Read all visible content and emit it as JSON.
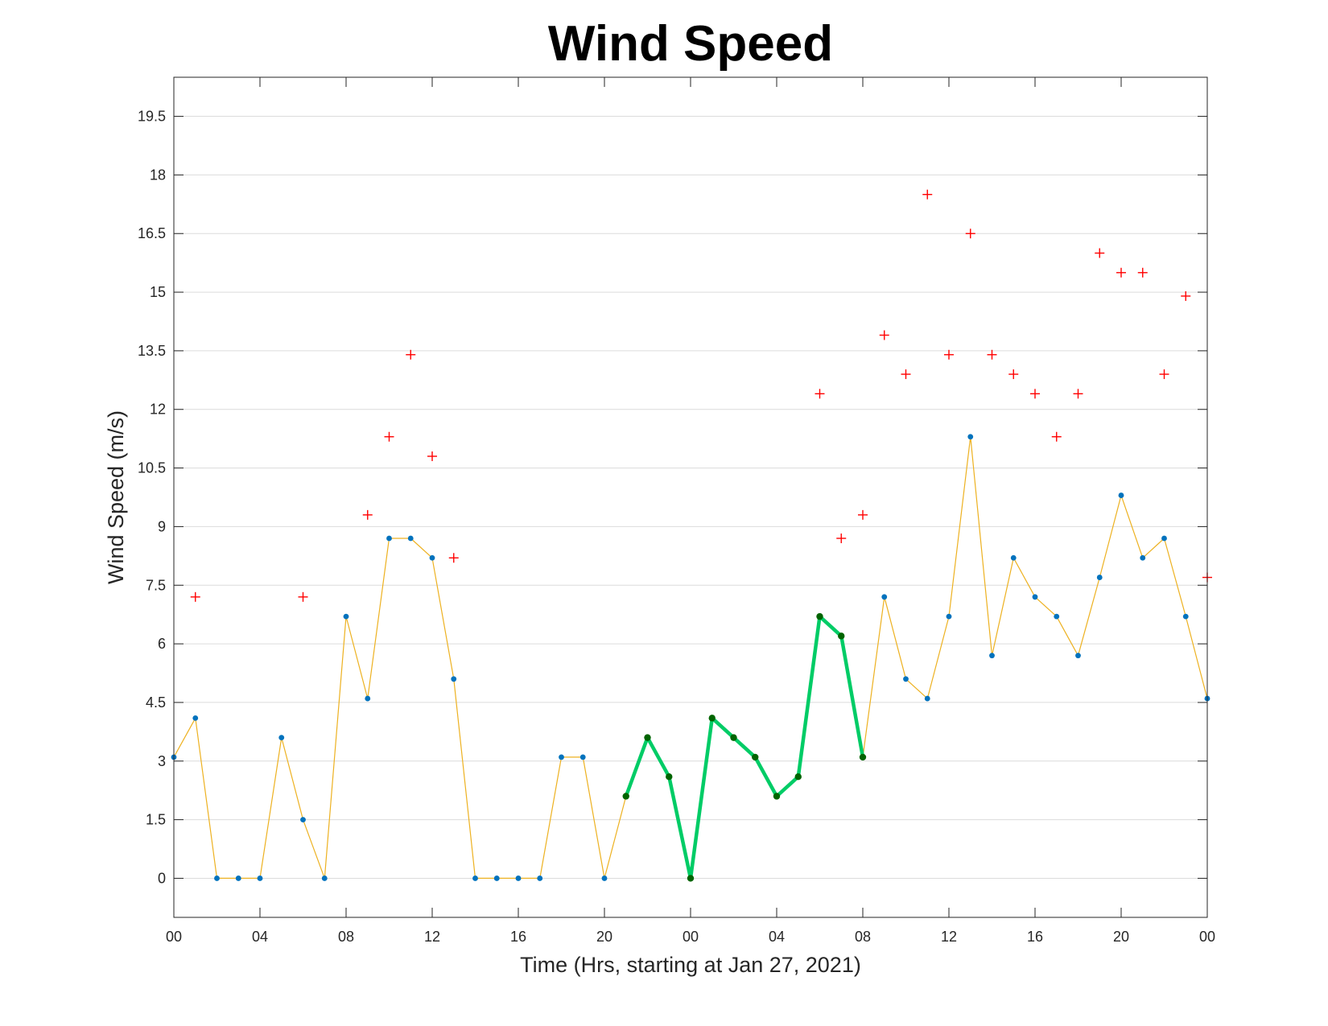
{
  "chart_data": {
    "type": "line",
    "title": "Wind Speed",
    "xlabel": "Time (Hrs, starting at Jan 27, 2021)",
    "ylabel": "Wind Speed (m/s)",
    "xlim": [
      0,
      48
    ],
    "ylim": [
      -1,
      20.5
    ],
    "x_ticks": [
      0,
      4,
      8,
      12,
      16,
      20,
      24,
      28,
      32,
      36,
      40,
      44,
      48
    ],
    "x_tick_labels": [
      "00",
      "04",
      "08",
      "12",
      "16",
      "20",
      "00",
      "04",
      "08",
      "12",
      "16",
      "20",
      "00"
    ],
    "y_ticks": [
      0,
      1.5,
      3,
      4.5,
      6,
      7.5,
      9,
      10.5,
      12,
      13.5,
      15,
      16.5,
      18,
      19.5
    ],
    "y_tick_labels": [
      "0",
      "1.5",
      "3",
      "4.5",
      "6",
      "7.5",
      "9",
      "10.5",
      "12",
      "13.5",
      "15",
      "16.5",
      "18",
      "19.5"
    ],
    "grid": "horizontal",
    "series": [
      {
        "style": "thin-line-markers",
        "color": "#EDB120",
        "marker_color": "#0072BD",
        "x": [
          0,
          1,
          2,
          3,
          4,
          5,
          6,
          7,
          8,
          9,
          10,
          11,
          12,
          13,
          14,
          15,
          16,
          17,
          18,
          19,
          20,
          21,
          22,
          23,
          24,
          25,
          26,
          27,
          28,
          29,
          30,
          31,
          32,
          33,
          34,
          35,
          36,
          37,
          38,
          39,
          40,
          41,
          42,
          43,
          44,
          45,
          46,
          47,
          48
        ],
        "y": [
          3.1,
          4.1,
          0,
          0,
          0,
          3.6,
          1.5,
          0,
          6.7,
          4.6,
          8.7,
          8.7,
          8.2,
          5.1,
          0,
          0,
          0,
          0,
          3.1,
          3.1,
          0,
          2.1,
          3.6,
          2.6,
          0,
          4.1,
          3.6,
          3.1,
          2.1,
          2.6,
          6.7,
          6.2,
          3.1,
          7.2,
          5.1,
          4.6,
          6.7,
          11.3,
          5.7,
          8.2,
          7.2,
          6.7,
          5.7,
          7.7,
          9.8,
          8.2,
          8.7,
          6.7,
          4.6
        ]
      },
      {
        "style": "thick-line-markers",
        "color": "#00CC66",
        "marker_color": "#006400",
        "x": [
          21,
          22,
          23,
          24,
          25,
          26,
          27,
          28,
          29,
          30,
          31,
          32
        ],
        "y": [
          2.1,
          3.6,
          2.6,
          0,
          4.1,
          3.6,
          3.1,
          2.1,
          2.6,
          6.7,
          6.2,
          3.1
        ]
      },
      {
        "style": "plus-markers",
        "color": "#FF0000",
        "x": [
          1,
          6,
          9,
          10,
          11,
          12,
          13,
          30,
          31,
          32,
          33,
          34,
          35,
          36,
          37,
          38,
          39,
          40,
          41,
          42,
          43,
          44,
          45,
          46,
          47,
          48
        ],
        "y": [
          7.2,
          7.2,
          9.3,
          11.3,
          13.4,
          10.8,
          8.2,
          12.4,
          8.7,
          9.3,
          13.9,
          12.9,
          17.5,
          13.4,
          16.5,
          13.4,
          12.9,
          12.4,
          11.3,
          12.4,
          16.0,
          15.5,
          15.5,
          12.9,
          14.9,
          7.7
        ]
      }
    ]
  }
}
